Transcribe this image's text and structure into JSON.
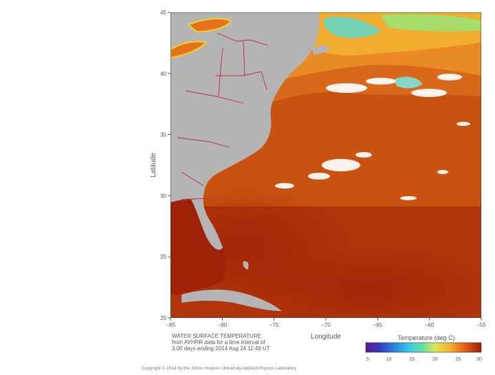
{
  "figure": {
    "ylabel": "Latitude",
    "xlabel": "Longitude",
    "lat_ticks": [
      "45",
      "40",
      "35",
      "30",
      "25",
      "20"
    ],
    "lon_ticks": [
      "−85",
      "−80",
      "−75",
      "−70",
      "−65",
      "−60",
      "−55"
    ],
    "caption_lines": [
      "WATER SURFACE TEMPERATURE",
      "from AVHRR data for a time interval of",
      "3.00 days ending 2014 Aug 24 11:49 UT"
    ],
    "colorbar": {
      "label": "Temperature (deg C)",
      "ticks": [
        "5",
        "10",
        "15",
        "20",
        "25",
        "30"
      ],
      "min": 5,
      "max": 30
    },
    "copyright": "Copyright © 2014 by the Johns Hopkins University Applied Physics Laboratory"
  },
  "colors": {
    "land": "#b4b4b4",
    "sea_warm": "#c44a0f",
    "sea_hot": "#9a1e05",
    "sea_mild": "#e5791a",
    "sea_cool": "#f0a92a",
    "sea_cold": "#6fd0b0",
    "clouds": "#ffffff",
    "boundaries": "#c0283c"
  }
}
